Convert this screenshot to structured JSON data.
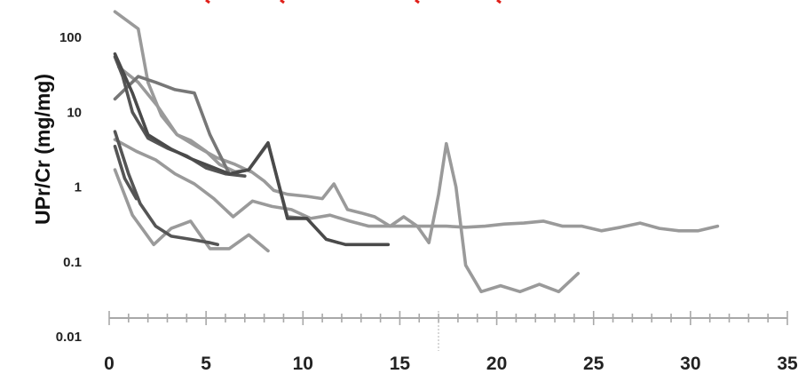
{
  "chart_data": {
    "type": "line",
    "title": "",
    "xlabel": "",
    "ylabel": "UPr/Cr (mg/mg)",
    "yscale": "log",
    "xlim": [
      0,
      35
    ],
    "ylim": [
      0.01,
      200
    ],
    "x_ticks": [
      0,
      5,
      10,
      15,
      20,
      25,
      30,
      35
    ],
    "x_tick_labels": [
      "0",
      "5",
      "10",
      "15",
      "20",
      "25",
      "30",
      "35"
    ],
    "y_ticks": [
      0.01,
      0.1,
      1,
      10,
      100
    ],
    "y_tick_labels": [
      "0.01",
      "0.1",
      "1",
      "10",
      "100"
    ],
    "grid": false,
    "legend": false,
    "series": [
      {
        "color": "#9a9a9a",
        "x": [
          0.3,
          1.4,
          2.4,
          3.4,
          4.4,
          5.4,
          6.4,
          7.4,
          8.4,
          9.4,
          10.4,
          11.4,
          12.4,
          13.4,
          14.4,
          15.4,
          16.4,
          17.4,
          18.4,
          19.4,
          20.4,
          21.4,
          22.4,
          23.4,
          24.4,
          25.4,
          26.4,
          27.4,
          28.4,
          29.4,
          30.4,
          31.4
        ],
        "y": [
          4.3,
          3.0,
          2.3,
          1.5,
          1.1,
          0.7,
          0.4,
          0.65,
          0.55,
          0.5,
          0.38,
          0.42,
          0.35,
          0.3,
          0.3,
          0.3,
          0.3,
          0.3,
          0.29,
          0.3,
          0.32,
          0.33,
          0.35,
          0.3,
          0.3,
          0.26,
          0.29,
          0.33,
          0.28,
          0.26,
          0.26,
          0.3
        ]
      },
      {
        "color": "#9a9a9a",
        "x": [
          0.3,
          1.5,
          2.0,
          2.7,
          3.5,
          4.2,
          5.0,
          5.7,
          6.5,
          7.2,
          8.0,
          8.5,
          9.2,
          10.2,
          11.0,
          11.6,
          12.3,
          13.0,
          13.7,
          14.5,
          15.2,
          15.9,
          16.5,
          17.0,
          17.4,
          17.9,
          18.4,
          19.2,
          20.2,
          21.2,
          22.2,
          23.2,
          24.2
        ],
        "y": [
          220,
          130,
          25,
          9,
          5,
          4.2,
          3.0,
          2.0,
          1.6,
          1.7,
          1.2,
          0.9,
          0.8,
          0.75,
          0.7,
          1.1,
          0.5,
          0.45,
          0.4,
          0.3,
          0.4,
          0.3,
          0.18,
          0.8,
          3.8,
          1.0,
          0.09,
          0.04,
          0.048,
          0.04,
          0.05,
          0.04,
          0.07
        ]
      },
      {
        "color": "#9a9a9a",
        "x": [
          0.3,
          1.2,
          2.3,
          3.2,
          4.2,
          5.2,
          6.2,
          7.2,
          8.2
        ],
        "y": [
          1.7,
          0.42,
          0.17,
          0.28,
          0.35,
          0.15,
          0.15,
          0.23,
          0.14
        ]
      },
      {
        "color": "#9a9a9a",
        "x": [
          0.5,
          1.5,
          2.5,
          3.5,
          4.5,
          5.5,
          6.5,
          7.3
        ],
        "y": [
          40,
          25,
          12,
          5,
          3.5,
          2.5,
          2.0,
          1.6
        ]
      },
      {
        "color": "#777777",
        "x": [
          0.3,
          1.5,
          2.4,
          3.4,
          4.4,
          5.2,
          6.2,
          7.2,
          8.2,
          9.2,
          10.2
        ],
        "y": [
          15,
          30,
          25,
          20,
          18,
          5,
          1.5,
          1.7,
          3.8,
          0.4,
          0.38
        ]
      },
      {
        "color": "#555555",
        "x": [
          0.3,
          0.7,
          1.2,
          2.0,
          3.0,
          4.0,
          5.0,
          6.0,
          7.0
        ],
        "y": [
          55,
          30,
          10,
          4.5,
          3.3,
          2.6,
          1.8,
          1.5,
          1.4
        ]
      },
      {
        "color": "#555555",
        "x": [
          0.3,
          1.0,
          1.6,
          2.4,
          3.2,
          4.2,
          5.2,
          5.6
        ],
        "y": [
          5.5,
          1.5,
          0.6,
          0.3,
          0.22,
          0.2,
          0.18,
          0.17
        ]
      },
      {
        "color": "#555555",
        "x": [
          0.3,
          0.8,
          1.4
        ],
        "y": [
          3.5,
          1.3,
          0.7
        ]
      },
      {
        "color": "#4a4a4a",
        "x": [
          0.3,
          1.2,
          2.0,
          3.2,
          4.2,
          5.2,
          6.2,
          7.2,
          8.2,
          9.2,
          10.2,
          11.2,
          12.2,
          13.2,
          14.4
        ],
        "y": [
          60,
          18,
          5,
          3.2,
          2.4,
          1.9,
          1.5,
          1.7,
          3.9,
          0.38,
          0.38,
          0.2,
          0.17,
          0.17,
          0.17
        ]
      }
    ]
  }
}
